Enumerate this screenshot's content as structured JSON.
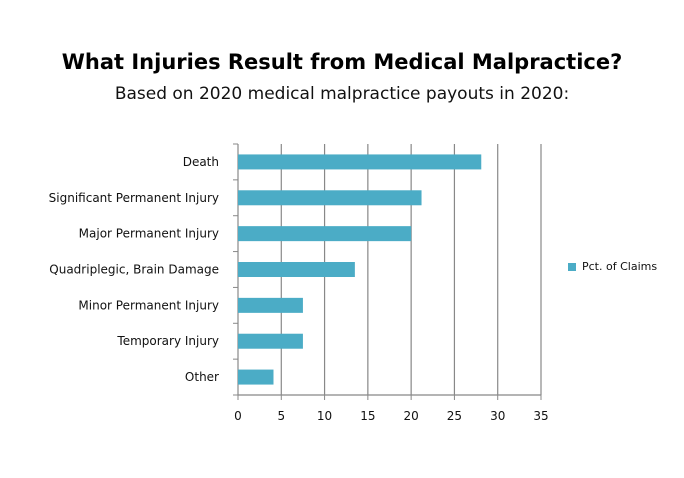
{
  "chart_data": {
    "type": "bar",
    "orientation": "horizontal",
    "title": "What Injuries Result from Medical Malpractice?",
    "subtitle": "Based on 2020 medical malpractice payouts in 2020:",
    "categories": [
      "Death",
      "Significant Permanent Injury",
      "Major Permanent Injury",
      "Quadriplegic, Brain Damage",
      "Minor Permanent Injury",
      "Temporary Injury",
      "Other"
    ],
    "series": [
      {
        "name": "Pct. of Claims",
        "values": [
          28.1,
          21.2,
          20.0,
          13.5,
          7.5,
          7.5,
          4.1
        ],
        "color": "#4bacc6"
      }
    ],
    "xlim": [
      0,
      35
    ],
    "xticks": [
      0,
      5,
      10,
      15,
      20,
      25,
      30,
      35
    ],
    "grid": "vertical",
    "legend": "right"
  }
}
